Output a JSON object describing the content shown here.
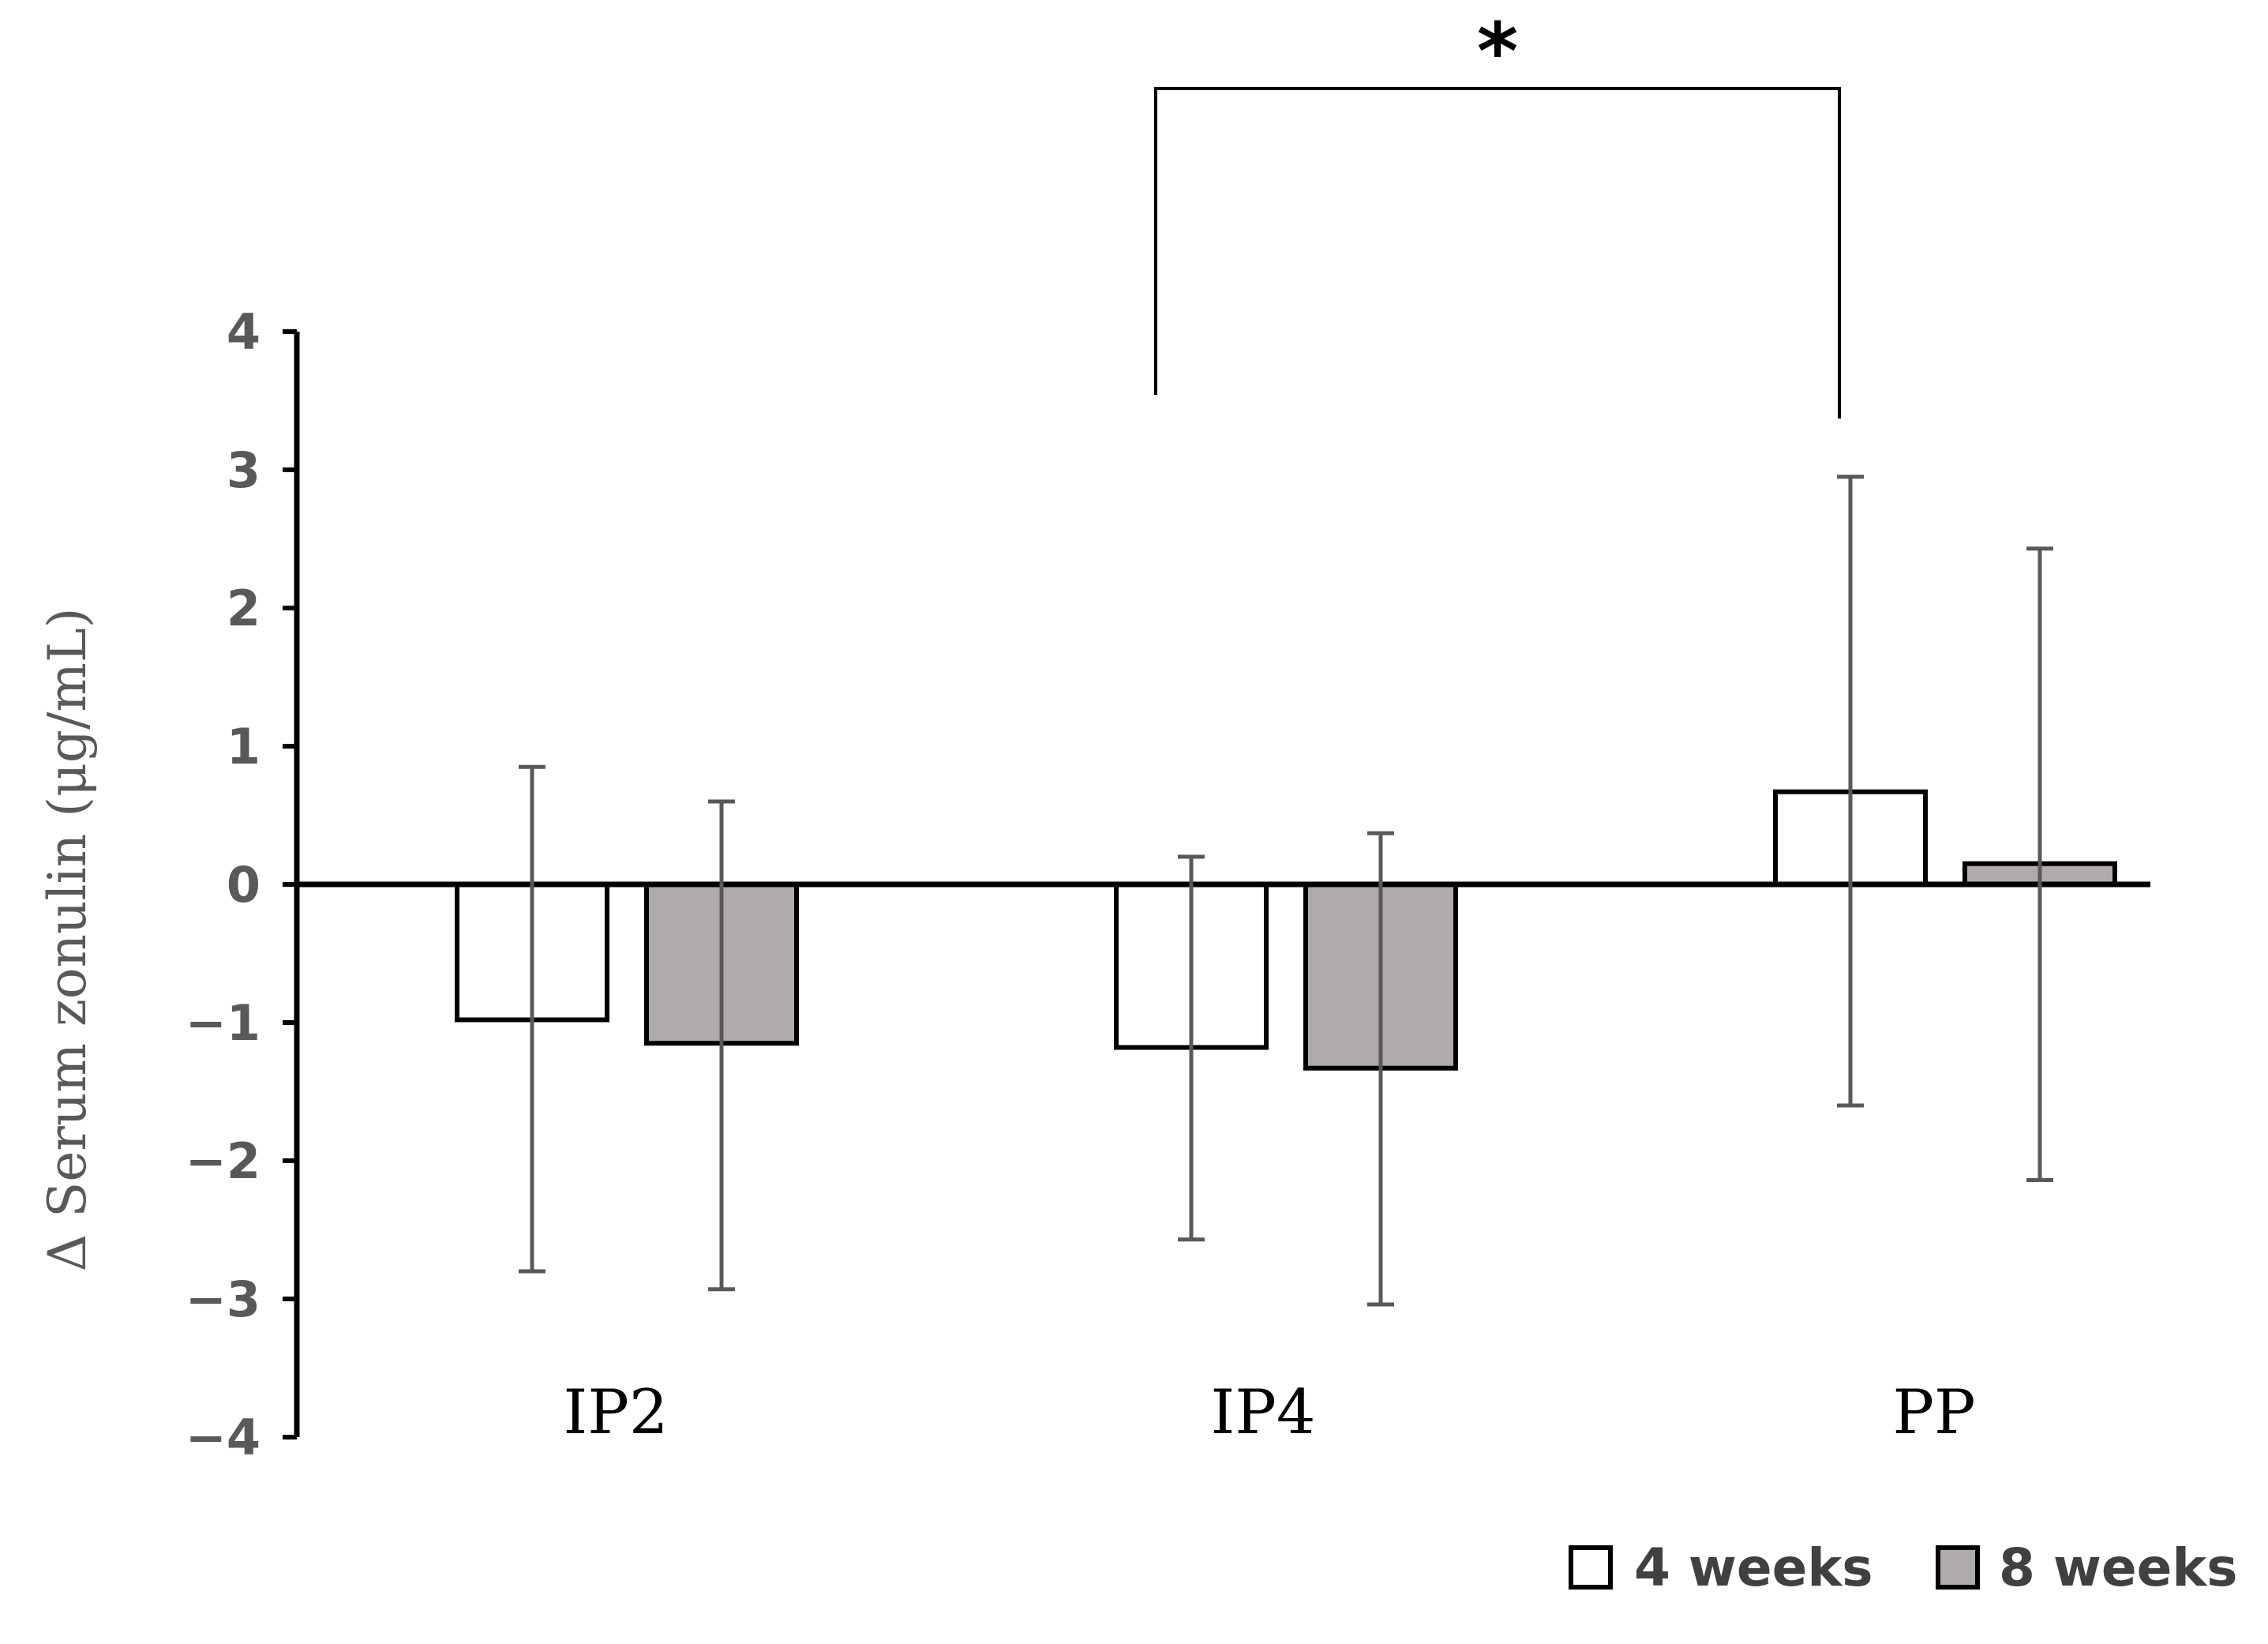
{
  "chart_data": {
    "type": "bar",
    "title": "",
    "xlabel": "",
    "ylabel": "Δ Serum zonulin (μg/mL)",
    "ylim": [
      -4,
      4
    ],
    "yticks": [
      4,
      3,
      2,
      1,
      0,
      -1,
      -2,
      -3,
      -4
    ],
    "ytick_labels": [
      "4",
      "3",
      "2",
      "1",
      "0",
      "−1",
      "−2",
      "−3",
      "−4"
    ],
    "categories": [
      "IP2",
      "IP4",
      "PP"
    ],
    "series": [
      {
        "name": "4 weeks",
        "color": "#ffffff",
        "values": [
          -0.98,
          -1.18,
          0.67
        ],
        "error_low": [
          -2.8,
          -2.57,
          -1.6
        ],
        "error_high": [
          0.85,
          0.2,
          2.95
        ]
      },
      {
        "name": "8 weeks",
        "color": "#afabab",
        "values": [
          -1.15,
          -1.33,
          0.15
        ],
        "error_low": [
          -2.93,
          -3.04,
          -2.14
        ],
        "error_high": [
          0.6,
          0.37,
          2.43
        ]
      }
    ],
    "legend_position": "bottom-right",
    "significance": {
      "label": "*",
      "between": [
        "IP4",
        "PP"
      ]
    },
    "colors": {
      "axis": "#000000",
      "error_bar": "#595959",
      "bar_outline": "#000000"
    }
  }
}
